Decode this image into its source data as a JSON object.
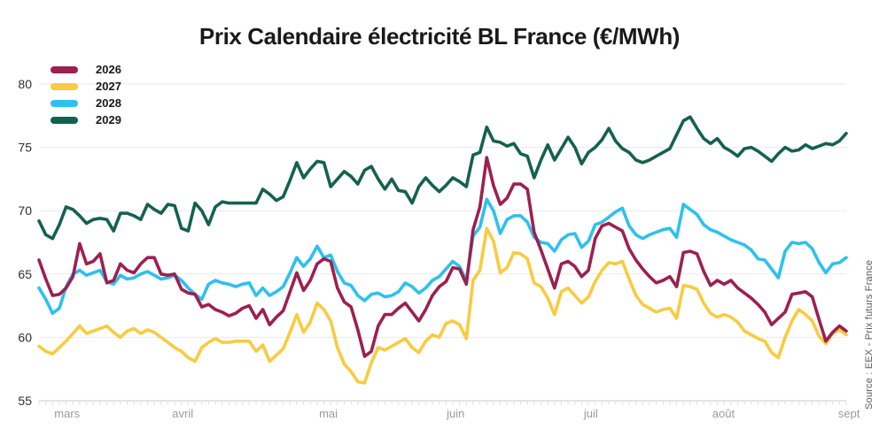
{
  "title": "Prix Calendaire électricité BL France (€/MWh)",
  "source": "Source : EEX - Prix futurs France",
  "colors": {
    "accent_2026": "#9C2050",
    "accent_2027": "#F8CB40",
    "accent_2028": "#2EC0EF",
    "accent_2029": "#14614F",
    "gridline": "#eaeaea",
    "axis_line": "#c9c9c9",
    "tick": "#dcdcdc",
    "y_label": "#2e2e2e",
    "x_label": "#9b9b9b"
  },
  "chart_data": {
    "type": "line",
    "title": "Prix Calendaire électricité BL France (€/MWh)",
    "ylabel": "€/MWh",
    "ylim": [
      55,
      80
    ],
    "y_ticks": [
      55,
      60,
      65,
      70,
      75,
      80
    ],
    "grid": true,
    "legend_position": "top-left",
    "x_months": [
      {
        "label": "mars",
        "f": 0.019
      },
      {
        "label": "avril",
        "f": 0.165
      },
      {
        "label": "mai",
        "f": 0.347
      },
      {
        "label": "juin",
        "f": 0.505
      },
      {
        "label": "juil",
        "f": 0.675
      },
      {
        "label": "août",
        "f": 0.834
      },
      {
        "label": "sept",
        "f": 0.99
      }
    ],
    "series": [
      {
        "name": "2026",
        "color": "#9C2050",
        "values": [
          66.1,
          64.6,
          63.3,
          63.4,
          63.9,
          64.8,
          67.4,
          65.8,
          66.0,
          66.6,
          64.3,
          64.5,
          65.8,
          65.3,
          65.1,
          65.8,
          66.3,
          66.3,
          65.0,
          64.9,
          65.0,
          63.8,
          63.5,
          63.4,
          62.4,
          62.6,
          62.2,
          62.0,
          61.7,
          61.9,
          62.3,
          62.5,
          61.5,
          62.2,
          61.0,
          61.6,
          62.1,
          63.6,
          65.1,
          63.7,
          64.5,
          65.8,
          66.2,
          66.0,
          63.9,
          62.8,
          62.4,
          60.6,
          58.5,
          58.9,
          60.9,
          61.8,
          61.8,
          62.3,
          62.7,
          62.0,
          61.3,
          62.2,
          63.3,
          64.0,
          64.4,
          65.5,
          65.4,
          64.2,
          68.5,
          70.3,
          74.2,
          72.0,
          70.5,
          71.0,
          72.1,
          72.1,
          71.7,
          68.3,
          66.9,
          65.4,
          63.9,
          65.8,
          66.0,
          65.6,
          64.8,
          65.3,
          67.8,
          68.8,
          69.0,
          68.7,
          68.4,
          67.0,
          66.1,
          65.4,
          64.8,
          64.3,
          64.5,
          64.8,
          64.0,
          66.7,
          66.8,
          66.6,
          65.2,
          64.1,
          64.5,
          64.2,
          64.5,
          63.9,
          63.5,
          63.1,
          62.6,
          62.0,
          61.0,
          61.5,
          62.0,
          63.4,
          63.5,
          63.6,
          63.2,
          61.4,
          59.7,
          60.4,
          60.9,
          60.5
        ]
      },
      {
        "name": "2027",
        "color": "#F8CB40",
        "values": [
          59.3,
          58.9,
          58.7,
          59.2,
          59.7,
          60.3,
          60.9,
          60.3,
          60.5,
          60.7,
          60.9,
          60.4,
          60.0,
          60.5,
          60.7,
          60.3,
          60.6,
          60.4,
          60.0,
          59.6,
          59.2,
          58.9,
          58.4,
          58.1,
          59.2,
          59.6,
          59.9,
          59.6,
          59.6,
          59.7,
          59.7,
          59.7,
          58.9,
          59.4,
          58.1,
          58.6,
          59.1,
          60.4,
          61.8,
          60.4,
          61.2,
          62.7,
          62.2,
          61.3,
          59.2,
          57.9,
          57.3,
          56.5,
          56.4,
          58.0,
          59.2,
          59.0,
          59.3,
          59.6,
          59.9,
          59.2,
          58.8,
          59.7,
          60.2,
          60.0,
          61.1,
          61.3,
          61.0,
          59.9,
          64.5,
          65.3,
          68.6,
          67.6,
          65.1,
          65.5,
          66.7,
          66.6,
          66.2,
          64.3,
          64.0,
          63.1,
          61.8,
          63.6,
          63.9,
          63.3,
          62.7,
          63.2,
          64.4,
          65.3,
          65.9,
          65.8,
          66.0,
          64.6,
          63.3,
          62.6,
          62.3,
          62.0,
          62.2,
          62.3,
          61.5,
          64.1,
          64.0,
          63.8,
          62.7,
          61.9,
          61.6,
          61.8,
          61.6,
          61.2,
          60.5,
          60.2,
          59.9,
          59.7,
          58.8,
          58.4,
          60.0,
          61.3,
          62.2,
          61.8,
          61.3,
          60.1,
          59.5,
          60.3,
          60.6,
          60.2
        ]
      },
      {
        "name": "2028",
        "color": "#2EC0EF",
        "values": [
          63.9,
          63.0,
          61.9,
          62.3,
          64.0,
          65.0,
          65.3,
          64.9,
          65.1,
          65.3,
          64.4,
          64.2,
          64.9,
          64.6,
          64.7,
          65.0,
          65.2,
          64.9,
          64.6,
          64.7,
          64.9,
          64.5,
          63.9,
          63.4,
          63.0,
          64.2,
          64.5,
          64.3,
          64.2,
          64.0,
          64.2,
          64.3,
          63.3,
          63.9,
          63.3,
          63.6,
          64.0,
          65.1,
          66.3,
          65.6,
          66.2,
          67.2,
          66.3,
          66.5,
          65.2,
          64.3,
          64.1,
          63.3,
          62.9,
          63.4,
          63.5,
          63.2,
          63.3,
          63.6,
          64.3,
          64.0,
          63.5,
          63.9,
          64.5,
          64.8,
          65.4,
          66.0,
          65.6,
          64.5,
          68.0,
          68.7,
          70.9,
          70.0,
          68.2,
          69.3,
          69.6,
          69.6,
          69.1,
          67.9,
          67.5,
          67.4,
          66.8,
          67.7,
          68.1,
          68.2,
          67.1,
          67.6,
          68.9,
          69.1,
          69.5,
          69.9,
          70.2,
          68.8,
          68.1,
          67.8,
          68.1,
          68.3,
          68.5,
          68.6,
          67.9,
          70.5,
          70.1,
          69.7,
          68.9,
          68.5,
          68.3,
          68.0,
          67.7,
          67.5,
          67.3,
          66.9,
          66.2,
          66.1,
          65.4,
          64.7,
          66.8,
          67.5,
          67.4,
          67.5,
          67.0,
          65.9,
          65.1,
          65.8,
          65.9,
          66.3
        ]
      },
      {
        "name": "2029",
        "color": "#14614F",
        "values": [
          69.2,
          68.1,
          67.8,
          68.9,
          70.3,
          70.1,
          69.6,
          69.0,
          69.3,
          69.4,
          69.3,
          68.4,
          69.8,
          69.8,
          69.6,
          69.3,
          70.5,
          70.1,
          69.8,
          70.5,
          70.4,
          68.6,
          68.4,
          70.6,
          70.0,
          68.9,
          70.3,
          70.7,
          70.6,
          70.6,
          70.6,
          70.6,
          70.6,
          71.7,
          71.3,
          70.8,
          71.1,
          72.4,
          73.8,
          72.6,
          73.3,
          73.9,
          73.8,
          71.9,
          72.5,
          73.1,
          72.7,
          72.1,
          73.2,
          73.5,
          72.5,
          71.7,
          72.5,
          71.6,
          71.5,
          70.6,
          71.9,
          72.6,
          72.0,
          71.5,
          72.0,
          72.6,
          72.3,
          71.9,
          74.4,
          74.6,
          76.6,
          75.5,
          75.4,
          75.1,
          75.3,
          74.5,
          74.3,
          72.6,
          74.0,
          75.2,
          74.0,
          74.9,
          75.8,
          75.0,
          73.7,
          74.6,
          75.0,
          75.6,
          76.5,
          75.5,
          74.9,
          74.6,
          74.0,
          73.8,
          74.0,
          74.3,
          74.6,
          74.9,
          76.0,
          77.1,
          77.4,
          76.5,
          75.7,
          75.3,
          75.7,
          75.0,
          74.7,
          74.3,
          74.9,
          75.0,
          74.7,
          74.3,
          73.9,
          74.5,
          75.0,
          74.7,
          74.8,
          75.2,
          74.9,
          75.1,
          75.3,
          75.2,
          75.5,
          76.1
        ]
      }
    ]
  }
}
